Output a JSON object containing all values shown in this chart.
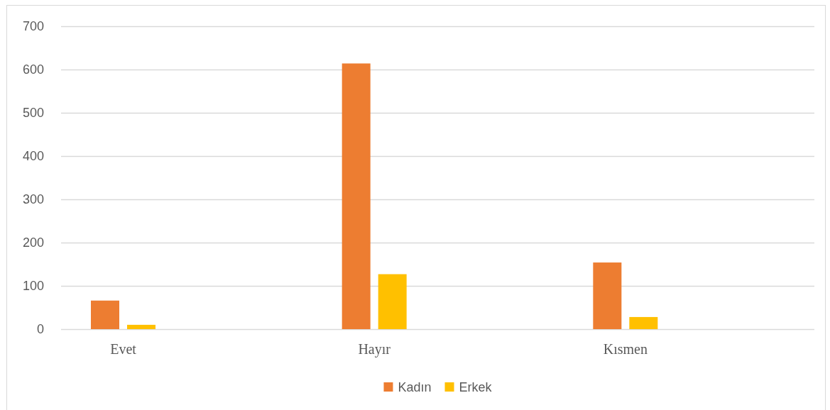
{
  "chart_data": {
    "type": "bar",
    "categories": [
      "Evet",
      "Hayır",
      "Kısmen"
    ],
    "series": [
      {
        "name": "Kadın",
        "color": "#ed7d31",
        "values": [
          66,
          614,
          154
        ]
      },
      {
        "name": "Erkek",
        "color": "#ffc000",
        "values": [
          10,
          127,
          28
        ]
      }
    ],
    "ylim": [
      0,
      700
    ],
    "yticks": [
      0,
      100,
      200,
      300,
      400,
      500,
      600,
      700
    ],
    "grid": "y",
    "legend": "bottom"
  }
}
